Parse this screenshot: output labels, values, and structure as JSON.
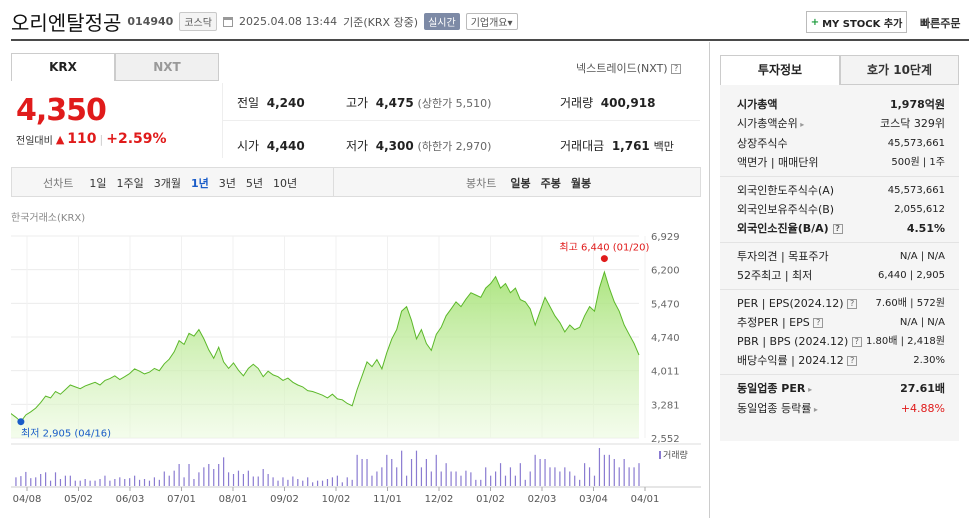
{
  "header": {
    "title": "오리엔탈정공",
    "code": "014940",
    "market_badge": "코스닥",
    "datetime": "2025.04.08 13:44",
    "basis": "기준(KRX 장중)",
    "realtime": "실시간",
    "company_info": "기업개요",
    "mystock_btn": "MY STOCK 추가",
    "quick_order": "빠른주문"
  },
  "tabs": {
    "krx": "KRX",
    "nxt": "NXT"
  },
  "nxt_link": "넥스트레이드(NXT)",
  "price": {
    "current": "4,350",
    "change_label": "전일대비",
    "change": "110",
    "change_pct": "+2.59%",
    "prev_label": "전일",
    "prev": "4,240",
    "open_label": "시가",
    "open": "4,440",
    "high_label": "고가",
    "high": "4,475",
    "upper_limit": "(상한가 5,510)",
    "low_label": "저가",
    "low": "4,300",
    "lower_limit": "(하한가 2,970)",
    "volume_label": "거래량",
    "volume": "400,918",
    "amount_label": "거래대금",
    "amount": "1,761",
    "amount_unit": "백만"
  },
  "chart_controls": {
    "line_label": "선차트",
    "periods": [
      "1일",
      "1주일",
      "3개월",
      "1년",
      "3년",
      "5년",
      "10년"
    ],
    "active_period": "1년",
    "candle_label": "봉차트",
    "candles": [
      "일봉",
      "주봉",
      "월봉"
    ]
  },
  "chart_data": {
    "type": "area",
    "source": "한국거래소(KRX)",
    "y_ticks": [
      "6,929",
      "6,200",
      "5,470",
      "4,740",
      "4,011",
      "3,281",
      "2,552"
    ],
    "ylim": [
      2552,
      6929
    ],
    "x_ticks": [
      "04/08",
      "05/02",
      "06/03",
      "07/01",
      "08/01",
      "09/02",
      "10/02",
      "11/01",
      "12/02",
      "01/02",
      "02/03",
      "03/04",
      "04/01"
    ],
    "max_label": "최고 6,440 (01/20)",
    "min_label": "최저 2,905 (04/16)",
    "volume_label": "거래량",
    "series": [
      {
        "values": [
          3080,
          3000,
          2905,
          3050,
          3120,
          3200,
          3320,
          3460,
          3420,
          3560,
          3500,
          3600,
          3700,
          3660,
          3620,
          3680,
          3720,
          3760,
          3700,
          3800,
          3840,
          3900,
          3820,
          3880,
          3950,
          4050,
          4000,
          3940,
          3980,
          4060,
          4010,
          4160,
          4260,
          4420,
          4660,
          4580,
          4820,
          4760,
          4900,
          4700,
          4460,
          4280,
          4520,
          4200,
          4060,
          4180,
          4020,
          3900,
          4060,
          4150,
          4060,
          3880,
          4000,
          3920,
          3880,
          3800,
          3850,
          3760,
          3700,
          3660,
          3580,
          3560,
          3520,
          3480,
          3420,
          3500,
          3400,
          3380,
          3300,
          3250,
          3600,
          3900,
          4200,
          4100,
          4250,
          4050,
          4400,
          4700,
          4900,
          5300,
          5400,
          5100,
          4700,
          4900,
          4600,
          4450,
          4800,
          4950,
          5200,
          5350,
          5500,
          5400,
          5560,
          5700,
          5650,
          5600,
          5800,
          5900,
          6050,
          5800,
          5900,
          5700,
          5800,
          5550,
          5500,
          5350,
          5000,
          5300,
          5600,
          5400,
          5200,
          5050,
          4850,
          5000,
          4900,
          4950,
          5200,
          5400,
          5300,
          5800,
          6150,
          5800,
          5500,
          5300,
          5000,
          4800,
          4600,
          4350
        ]
      }
    ]
  },
  "right_panel": {
    "tab_info": "투자정보",
    "tab_quote": "호가 10단계",
    "market_cap_label": "시가총액",
    "market_cap": "1,978억원",
    "rank_label": "시가총액순위",
    "rank": "코스닥 329위",
    "shares_label": "상장주식수",
    "shares": "45,573,661",
    "par_label": "액면가 | 매매단위",
    "par": "500원 | 1주",
    "foreign_limit_label": "외국인한도주식수(A)",
    "foreign_limit": "45,573,661",
    "foreign_hold_label": "외국인보유주식수(B)",
    "foreign_hold": "2,055,612",
    "foreign_ratio_label": "외국인소진율(B/A)",
    "foreign_ratio": "4.51%",
    "opinion_label": "투자의견 | 목표주가",
    "opinion": "N/A | N/A",
    "w52_label": "52주최고 | 최저",
    "w52": "6,440 | 2,905",
    "per_label": "PER | EPS(2024.12)",
    "per": "7.60배 | 572원",
    "eper_label": "추정PER | EPS",
    "eper": "N/A | N/A",
    "pbr_label": "PBR | BPS (2024.12)",
    "pbr": "1.80배 | 2,418원",
    "div_label": "배당수익률 | 2024.12",
    "div": "2.30%",
    "ind_per_label": "동일업종 PER",
    "ind_per": "27.61배",
    "ind_rate_label": "동일업종 등락률",
    "ind_rate": "+4.88%"
  }
}
